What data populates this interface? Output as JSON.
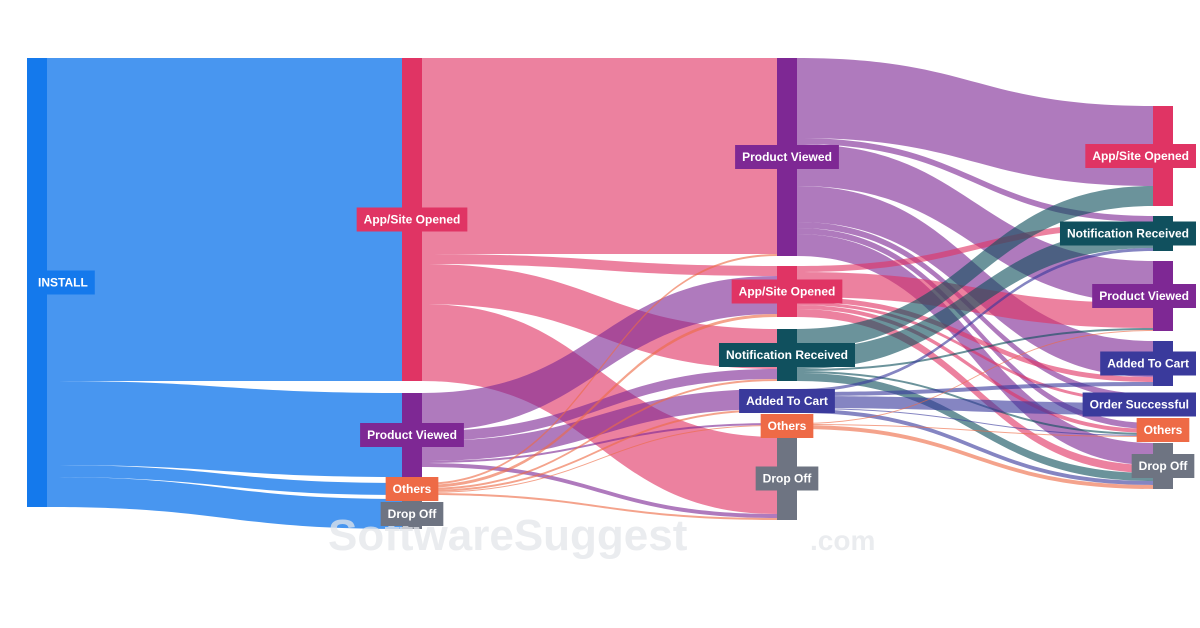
{
  "chart_data": {
    "type": "sankey",
    "title": "",
    "colors": {
      "install": "#1479ec",
      "app_opened": "#e03464",
      "product_viewed": "#7e2894",
      "notification": "#10505e",
      "added_to_cart": "#3a3a9c",
      "order_successful": "#3a3a9c",
      "others": "#ee6a46",
      "drop_off": "#6e7482"
    },
    "nodes": [
      {
        "id": "n_install",
        "label": "INSTALL",
        "stage": 0,
        "color": "install"
      },
      {
        "id": "n_app1",
        "label": "App/Site Opened",
        "stage": 1,
        "color": "app_opened"
      },
      {
        "id": "n_pv1",
        "label": "Product Viewed",
        "stage": 1,
        "color": "product_viewed"
      },
      {
        "id": "n_oth1",
        "label": "Others",
        "stage": 1,
        "color": "others"
      },
      {
        "id": "n_drop1",
        "label": "Drop Off",
        "stage": 1,
        "color": "drop_off"
      },
      {
        "id": "n_pv2",
        "label": "Product Viewed",
        "stage": 2,
        "color": "product_viewed"
      },
      {
        "id": "n_app2",
        "label": "App/Site Opened",
        "stage": 2,
        "color": "app_opened"
      },
      {
        "id": "n_notif2",
        "label": "Notification Received",
        "stage": 2,
        "color": "notification"
      },
      {
        "id": "n_cart2",
        "label": "Added To Cart",
        "stage": 2,
        "color": "added_to_cart"
      },
      {
        "id": "n_oth2",
        "label": "Others",
        "stage": 2,
        "color": "others"
      },
      {
        "id": "n_drop2",
        "label": "Drop Off",
        "stage": 2,
        "color": "drop_off"
      },
      {
        "id": "n_app3",
        "label": "App/Site Opened",
        "stage": 3,
        "color": "app_opened"
      },
      {
        "id": "n_notif3",
        "label": "Notification Received",
        "stage": 3,
        "color": "notification"
      },
      {
        "id": "n_pv3",
        "label": "Product Viewed",
        "stage": 3,
        "color": "product_viewed"
      },
      {
        "id": "n_cart3",
        "label": "Added To Cart",
        "stage": 3,
        "color": "added_to_cart"
      },
      {
        "id": "n_order3",
        "label": "Order Successful",
        "stage": 3,
        "color": "order_successful"
      },
      {
        "id": "n_oth3",
        "label": "Others",
        "stage": 3,
        "color": "others"
      },
      {
        "id": "n_drop3",
        "label": "Drop Off",
        "stage": 3,
        "color": "drop_off"
      }
    ],
    "links": [
      {
        "source": "n_install",
        "target": "n_app1",
        "value": 323
      },
      {
        "source": "n_install",
        "target": "n_pv1",
        "value": 84
      },
      {
        "source": "n_install",
        "target": "n_oth1",
        "value": 12
      },
      {
        "source": "n_install",
        "target": "n_drop1",
        "value": 30
      },
      {
        "source": "n_app1",
        "target": "n_pv2",
        "value": 196
      },
      {
        "source": "n_app1",
        "target": "n_app2",
        "value": 10
      },
      {
        "source": "n_app1",
        "target": "n_notif2",
        "value": 40
      },
      {
        "source": "n_app1",
        "target": "n_drop2",
        "value": 77
      },
      {
        "source": "n_pv1",
        "target": "n_app2",
        "value": 38
      },
      {
        "source": "n_pv1",
        "target": "n_notif2",
        "value": 10
      },
      {
        "source": "n_pv1",
        "target": "n_cart2",
        "value": 20
      },
      {
        "source": "n_pv1",
        "target": "n_oth2",
        "value": 2
      },
      {
        "source": "n_pv1",
        "target": "n_drop2",
        "value": 4
      },
      {
        "source": "n_oth1",
        "target": "n_pv2",
        "value": 2
      },
      {
        "source": "n_oth1",
        "target": "n_app2",
        "value": 3
      },
      {
        "source": "n_oth1",
        "target": "n_notif2",
        "value": 2
      },
      {
        "source": "n_oth1",
        "target": "n_cart2",
        "value": 2
      },
      {
        "source": "n_oth1",
        "target": "n_oth2",
        "value": 1
      },
      {
        "source": "n_oth1",
        "target": "n_drop2",
        "value": 2
      },
      {
        "source": "n_pv2",
        "target": "n_app3",
        "value": 80
      },
      {
        "source": "n_pv2",
        "target": "n_pv3",
        "value": 42
      },
      {
        "source": "n_pv2",
        "target": "n_cart3",
        "value": 36
      },
      {
        "source": "n_pv2",
        "target": "n_notif3",
        "value": 6
      },
      {
        "source": "n_pv2",
        "target": "n_order3",
        "value": 6
      },
      {
        "source": "n_pv2",
        "target": "n_oth3",
        "value": 6
      },
      {
        "source": "n_pv2",
        "target": "n_drop3",
        "value": 22
      },
      {
        "source": "n_app2",
        "target": "n_notif3",
        "value": 6
      },
      {
        "source": "n_app2",
        "target": "n_pv3",
        "value": 25
      },
      {
        "source": "n_app2",
        "target": "n_cart3",
        "value": 5
      },
      {
        "source": "n_app2",
        "target": "n_order3",
        "value": 3
      },
      {
        "source": "n_app2",
        "target": "n_oth3",
        "value": 4
      },
      {
        "source": "n_app2",
        "target": "n_drop3",
        "value": 8
      },
      {
        "source": "n_notif2",
        "target": "n_app3",
        "value": 20
      },
      {
        "source": "n_notif2",
        "target": "n_notif3",
        "value": 20
      },
      {
        "source": "n_notif2",
        "target": "n_pv3",
        "value": 2
      },
      {
        "source": "n_notif2",
        "target": "n_oth3",
        "value": 2
      },
      {
        "source": "n_notif2",
        "target": "n_drop3",
        "value": 8
      },
      {
        "source": "n_cart2",
        "target": "n_notif3",
        "value": 3
      },
      {
        "source": "n_cart2",
        "target": "n_cart3",
        "value": 4
      },
      {
        "source": "n_cart2",
        "target": "n_order3",
        "value": 12
      },
      {
        "source": "n_cart2",
        "target": "n_oth3",
        "value": 1
      },
      {
        "source": "n_cart2",
        "target": "n_drop3",
        "value": 4
      },
      {
        "source": "n_oth2",
        "target": "n_pv3",
        "value": 1
      },
      {
        "source": "n_oth2",
        "target": "n_oth3",
        "value": 1
      },
      {
        "source": "n_oth2",
        "target": "n_drop3",
        "value": 4
      }
    ]
  },
  "watermark": {
    "brand": "SoftwareSuggest",
    "suffix": ".com"
  }
}
